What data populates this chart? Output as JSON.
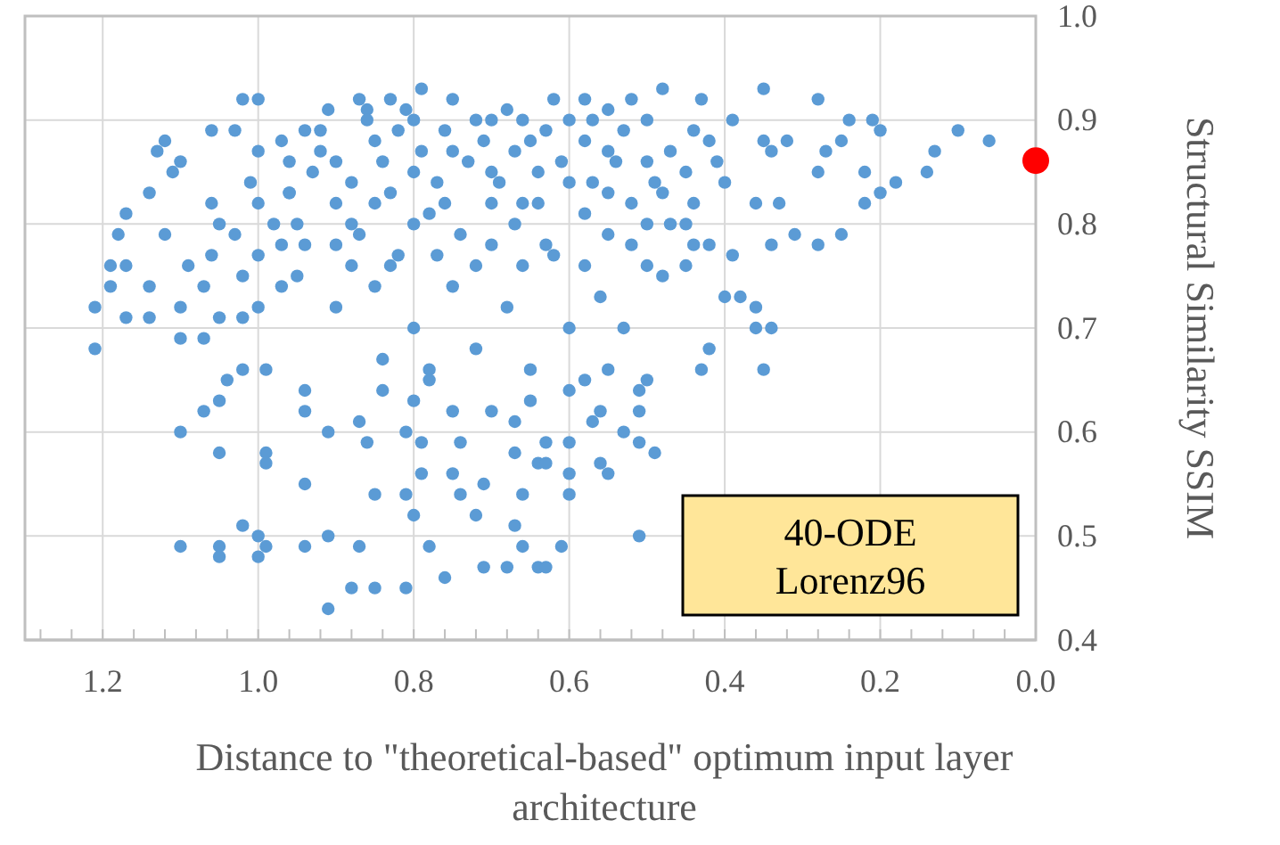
{
  "chart_data": {
    "type": "scatter",
    "xlabel": "Distance to \"theoretical-based\" optimum input layer architecture",
    "ylabel": "Structural Similarity SSIM",
    "xlim": [
      1.3,
      0
    ],
    "ylim": [
      0.4,
      1.0
    ],
    "xticks": [
      {
        "value": 1.28,
        "label": null
      },
      {
        "value": 1.24,
        "label": null
      },
      1.2,
      {
        "value": 1.16,
        "label": null
      },
      {
        "value": 1.12,
        "label": null
      },
      {
        "value": 1.08,
        "label": null
      },
      {
        "value": 1.04,
        "label": null
      },
      {
        "value": 1,
        "label": "1.0"
      },
      {
        "value": 0.96,
        "label": null
      },
      {
        "value": 0.92,
        "label": null
      },
      {
        "value": 0.88,
        "label": null
      },
      {
        "value": 0.84,
        "label": null
      },
      0.8,
      {
        "value": 0.76,
        "label": null
      },
      {
        "value": 0.72,
        "label": null
      },
      {
        "value": 0.68,
        "label": null
      },
      {
        "value": 0.64,
        "label": null
      },
      0.6,
      {
        "value": 0.56,
        "label": null
      },
      {
        "value": 0.52,
        "label": null
      },
      {
        "value": 0.48,
        "label": null
      },
      {
        "value": 0.44,
        "label": null
      },
      0.4,
      {
        "value": 0.36,
        "label": null
      },
      {
        "value": 0.32,
        "label": null
      },
      {
        "value": 0.28,
        "label": null
      },
      {
        "value": 0.24,
        "label": null
      },
      0.2,
      {
        "value": 0.16,
        "label": null
      },
      {
        "value": 0.12,
        "label": null
      },
      {
        "value": 0.08,
        "label": null
      },
      {
        "value": 0.04,
        "label": null
      },
      {
        "value": 0,
        "label": "0.0"
      }
    ],
    "yticks": [
      0.4,
      0.5,
      0.6,
      0.7,
      0.8,
      0.9,
      {
        "value": 1,
        "label": "1.0"
      }
    ],
    "grid": true,
    "marker": "circle",
    "annotations": [
      "40-ODE\nLorenz96"
    ],
    "series": [
      {
        "color": "#5b9bd5",
        "x": [
          0.92,
          0.88,
          0.84,
          0.82,
          0.79,
          0.77,
          0.76,
          0.73,
          0.71,
          0.69,
          0.67,
          0.64,
          0.63,
          0.61,
          0.58,
          0.57,
          0.54,
          0.53,
          0.49,
          0.47,
          0.44,
          0.41,
          0.9,
          0.87,
          0.83,
          0.8,
          0.76,
          0.74,
          0.7,
          0.67,
          0.64,
          0.63,
          0.58,
          0.55,
          0.5,
          0.48,
          0.44,
          0.92,
          0.86,
          0.81,
          0.7,
          0.66,
          0.57,
          0.52,
          0.83,
          0.77,
          0.72,
          0.66,
          0.58,
          0.52,
          0.88,
          0.96,
          0.98,
          0.94,
          1.21,
          1.21,
          1.19,
          1.19,
          1.18,
          1.17,
          1.14,
          1.13,
          1.12,
          1.1,
          1.11,
          1.17,
          1.14,
          1.17,
          1.14,
          1.1,
          1.12,
          1.09,
          1.07,
          1.05,
          1.06,
          1.06,
          1.06,
          1.02,
          1.0,
          1.03,
          1.0,
          1.01,
          1.03,
          1.02,
          1.02,
          1.0,
          0.97,
          0.97,
          0.96,
          0.96,
          0.94,
          0.91,
          0.87,
          0.83,
          0.79,
          1.1,
          1.07,
          1.1,
          1.05,
          1.1,
          1.05,
          1.05,
          1.02,
          1.0,
          1.0,
          0.99,
          0.99,
          0.99,
          0.94,
          0.94,
          0.91,
          0.91,
          0.88,
          0.85,
          0.81,
          0.87,
          0.91,
          0.94,
          1.04,
          1.07,
          1.05,
          1.02,
          0.99,
          0.94,
          0.87,
          0.86,
          0.85,
          0.81,
          0.8,
          0.78,
          0.76,
          0.74,
          0.75,
          0.72,
          0.71,
          0.68,
          0.67,
          0.66,
          0.64,
          0.61,
          0.66,
          0.64,
          0.63,
          0.67,
          0.71,
          0.74,
          0.79,
          0.79,
          0.81,
          0.75,
          0.8,
          0.84,
          0.67,
          0.65,
          0.78,
          0.84,
          0.51,
          0.63,
          0.6,
          0.55,
          0.56,
          0.49,
          0.51,
          0.6,
          0.6,
          0.53,
          0.57,
          0.56,
          0.51,
          0.51,
          0.5,
          0.43,
          0.42,
          0.35,
          0.34,
          0.36,
          0.55,
          0.6,
          0.63,
          0.35,
          0.28,
          0.24,
          0.21,
          0.2,
          0.25,
          0.14,
          0.13,
          0.1,
          0.06,
          0.18,
          0.2,
          0.22,
          0.22,
          0.28,
          0.27,
          0.31,
          0.25,
          0.28,
          0.34,
          0.33,
          0.36,
          0.34,
          0.32,
          0.35,
          0.39,
          0.43,
          0.48,
          0.58,
          0.4,
          0.38,
          0.36,
          0.39,
          0.42,
          0.44,
          0.45,
          0.48,
          0.9,
          0.85,
          0.8,
          0.75,
          0.7,
          0.65,
          0.6,
          0.55,
          0.5,
          0.45,
          0.85,
          0.78,
          0.72,
          0.66,
          0.6,
          0.52,
          0.88,
          0.7,
          0.62,
          0.55,
          0.47,
          0.82,
          0.75,
          0.68,
          0.6,
          0.8,
          0.72,
          0.65,
          0.78,
          0.9,
          0.95,
          0.93,
          0.75,
          0.68,
          0.62,
          0.55,
          0.5,
          0.42,
          0.4,
          0.45,
          0.5,
          0.56,
          0.53,
          0.58,
          0.7,
          0.85,
          0.9,
          0.95,
          1.0,
          1.05,
          1.0,
          0.97,
          0.86,
          0.8
        ],
        "values": [
          0.87,
          0.84,
          0.86,
          0.89,
          0.87,
          0.84,
          0.89,
          0.86,
          0.88,
          0.84,
          0.87,
          0.85,
          0.89,
          0.86,
          0.88,
          0.84,
          0.86,
          0.89,
          0.84,
          0.87,
          0.89,
          0.86,
          0.82,
          0.79,
          0.83,
          0.8,
          0.82,
          0.79,
          0.82,
          0.8,
          0.82,
          0.78,
          0.81,
          0.83,
          0.8,
          0.83,
          0.82,
          0.89,
          0.91,
          0.91,
          0.9,
          0.9,
          0.9,
          0.92,
          0.76,
          0.77,
          0.76,
          0.76,
          0.76,
          0.78,
          0.76,
          0.83,
          0.8,
          0.78,
          0.72,
          0.68,
          0.74,
          0.76,
          0.79,
          0.81,
          0.83,
          0.87,
          0.88,
          0.86,
          0.85,
          0.76,
          0.74,
          0.71,
          0.71,
          0.72,
          0.79,
          0.76,
          0.74,
          0.71,
          0.77,
          0.82,
          0.89,
          0.92,
          0.92,
          0.89,
          0.87,
          0.84,
          0.79,
          0.75,
          0.71,
          0.72,
          0.74,
          0.78,
          0.83,
          0.86,
          0.89,
          0.91,
          0.92,
          0.92,
          0.93,
          0.69,
          0.69,
          0.6,
          0.58,
          0.49,
          0.49,
          0.48,
          0.51,
          0.5,
          0.48,
          0.49,
          0.58,
          0.57,
          0.55,
          0.49,
          0.5,
          0.43,
          0.45,
          0.45,
          0.45,
          0.49,
          0.6,
          0.62,
          0.65,
          0.62,
          0.63,
          0.66,
          0.66,
          0.64,
          0.61,
          0.59,
          0.54,
          0.54,
          0.52,
          0.49,
          0.46,
          0.54,
          0.56,
          0.52,
          0.47,
          0.47,
          0.51,
          0.49,
          0.47,
          0.49,
          0.54,
          0.57,
          0.59,
          0.58,
          0.55,
          0.59,
          0.56,
          0.59,
          0.6,
          0.62,
          0.63,
          0.64,
          0.61,
          0.63,
          0.66,
          0.67,
          0.5,
          0.47,
          0.54,
          0.56,
          0.57,
          0.58,
          0.59,
          0.56,
          0.59,
          0.6,
          0.61,
          0.62,
          0.62,
          0.64,
          0.65,
          0.66,
          0.68,
          0.66,
          0.7,
          0.7,
          0.66,
          0.64,
          0.57,
          0.93,
          0.92,
          0.9,
          0.9,
          0.89,
          0.88,
          0.85,
          0.87,
          0.89,
          0.88,
          0.84,
          0.83,
          0.82,
          0.85,
          0.85,
          0.87,
          0.79,
          0.79,
          0.78,
          0.78,
          0.82,
          0.82,
          0.87,
          0.88,
          0.88,
          0.9,
          0.92,
          0.93,
          0.92,
          0.73,
          0.73,
          0.72,
          0.77,
          0.78,
          0.78,
          0.76,
          0.75,
          0.86,
          0.88,
          0.85,
          0.87,
          0.85,
          0.88,
          0.84,
          0.87,
          0.86,
          0.85,
          0.82,
          0.81,
          0.9,
          0.82,
          0.9,
          0.82,
          0.8,
          0.78,
          0.77,
          0.79,
          0.8,
          0.77,
          0.74,
          0.72,
          0.7,
          0.7,
          0.68,
          0.66,
          0.65,
          0.78,
          0.8,
          0.85,
          0.92,
          0.91,
          0.92,
          0.91,
          0.9,
          0.88,
          0.84,
          0.8,
          0.76,
          0.73,
          0.7,
          0.65,
          0.62,
          0.74,
          0.72,
          0.75,
          0.77,
          0.8,
          0.82,
          0.88,
          0.9,
          0.9
        ]
      },
      {
        "color": "#ff0000",
        "x": [
          0
        ],
        "values": [
          0.861
        ]
      }
    ]
  }
}
